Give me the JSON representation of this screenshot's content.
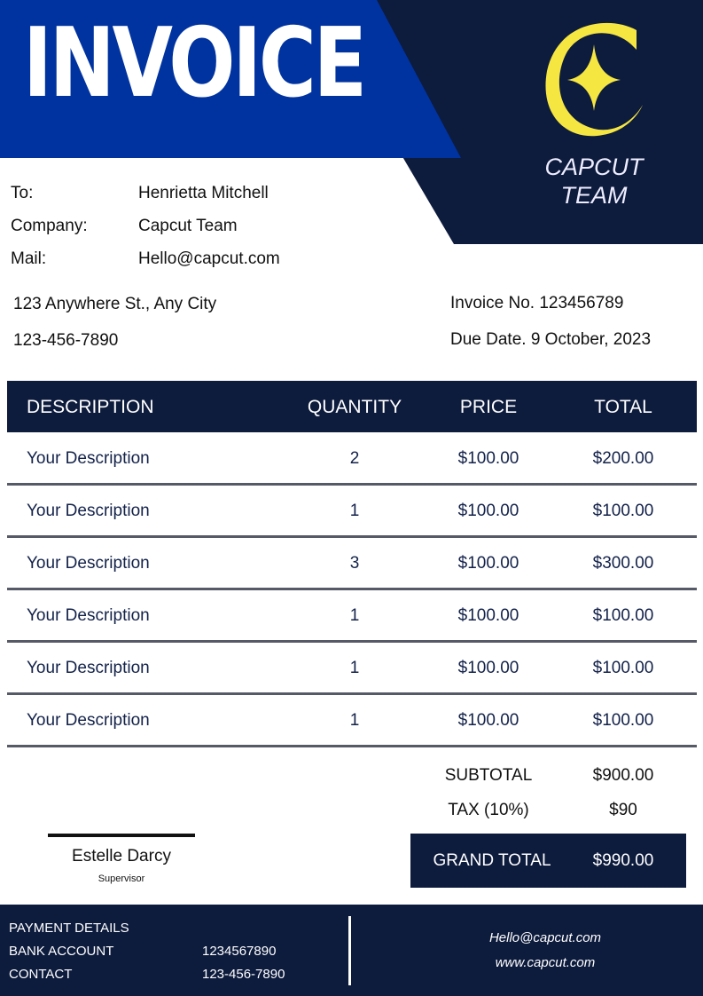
{
  "header": {
    "title": "INVOICE",
    "brand_line1": "CAPCUT",
    "brand_line2": "TEAM",
    "logo": "C-star-logo"
  },
  "colors": {
    "blue": "#0033a0",
    "navy": "#0d1b3d",
    "logo_yellow": "#f5e642"
  },
  "bill_to": {
    "to_label": "To:",
    "to_value": "Henrietta Mitchell",
    "company_label": "Company:",
    "company_value": "Capcut Team",
    "mail_label": "Mail:",
    "mail_value": "Hello@capcut.com",
    "address": "123 Anywhere St., Any City",
    "phone": "123-456-7890"
  },
  "invoice": {
    "number": "Invoice No. 123456789",
    "due_date": "Due Date. 9 October, 2023"
  },
  "table": {
    "headers": [
      "DESCRIPTION",
      "QUANTITY",
      "PRICE",
      "TOTAL"
    ],
    "items": [
      [
        "Your Description",
        "2",
        "$100.00",
        "$200.00"
      ],
      [
        "Your Description",
        "1",
        "$100.00",
        "$100.00"
      ],
      [
        "Your Description",
        "3",
        "$100.00",
        "$300.00"
      ],
      [
        "Your Description",
        "1",
        "$100.00",
        "$100.00"
      ],
      [
        "Your Description",
        "1",
        "$100.00",
        "$100.00"
      ],
      [
        "Your Description",
        "1",
        "$100.00",
        "$100.00"
      ]
    ]
  },
  "totals": {
    "subtotal_label": "SUBTOTAL",
    "subtotal": "$900.00",
    "tax_label": "TAX (10%)",
    "tax": "$90",
    "grand_label": "GRAND TOTAL",
    "grand": "$990.00"
  },
  "signature": {
    "name": "Estelle Darcy",
    "role": "Supervisor"
  },
  "footer": {
    "payment_title": "PAYMENT DETAILS",
    "bank_label": "BANK ACCOUNT",
    "bank_value": "1234567890",
    "contact_label": "CONTACT",
    "contact_value": "123-456-7890",
    "email": "Hello@capcut.com",
    "website": "www.capcut.com"
  }
}
